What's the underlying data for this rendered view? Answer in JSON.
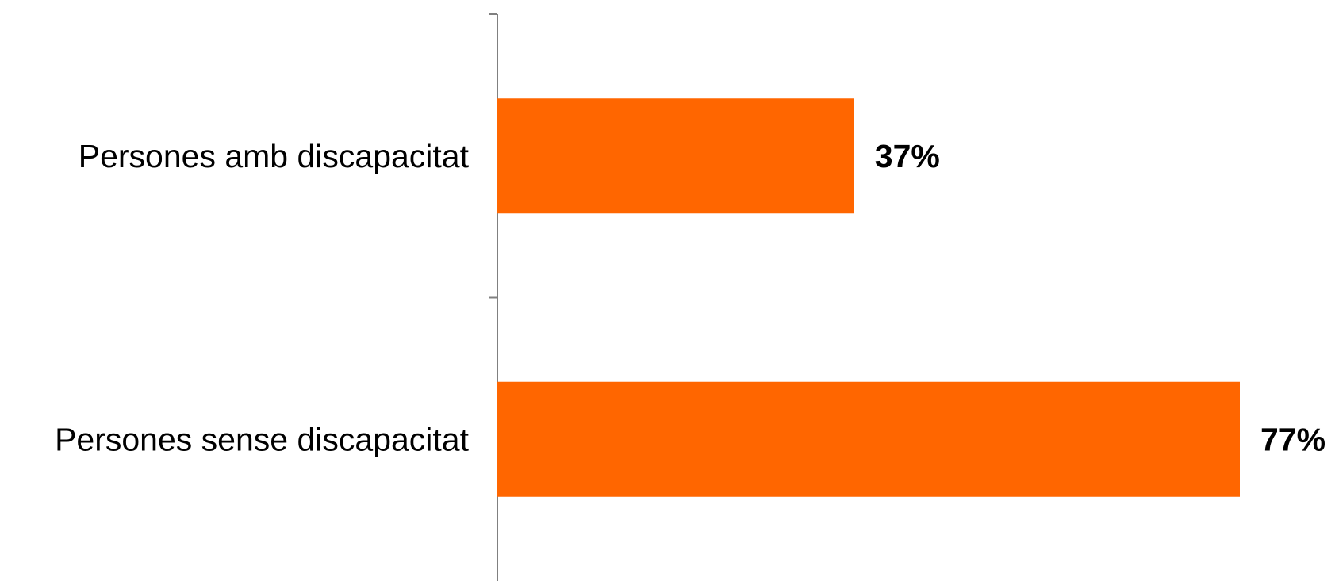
{
  "chart_data": {
    "type": "bar",
    "orientation": "horizontal",
    "categories": [
      "Persones amb discapacitat",
      "Persones sense discapacitat"
    ],
    "values": [
      37,
      77
    ],
    "value_labels": [
      "37%",
      "77%"
    ],
    "unit": "%",
    "xlim": [
      0,
      77
    ],
    "grid": false,
    "legend": "none",
    "colors": {
      "bar": "#ff6600",
      "axis": "#808080",
      "text": "#000000"
    }
  }
}
